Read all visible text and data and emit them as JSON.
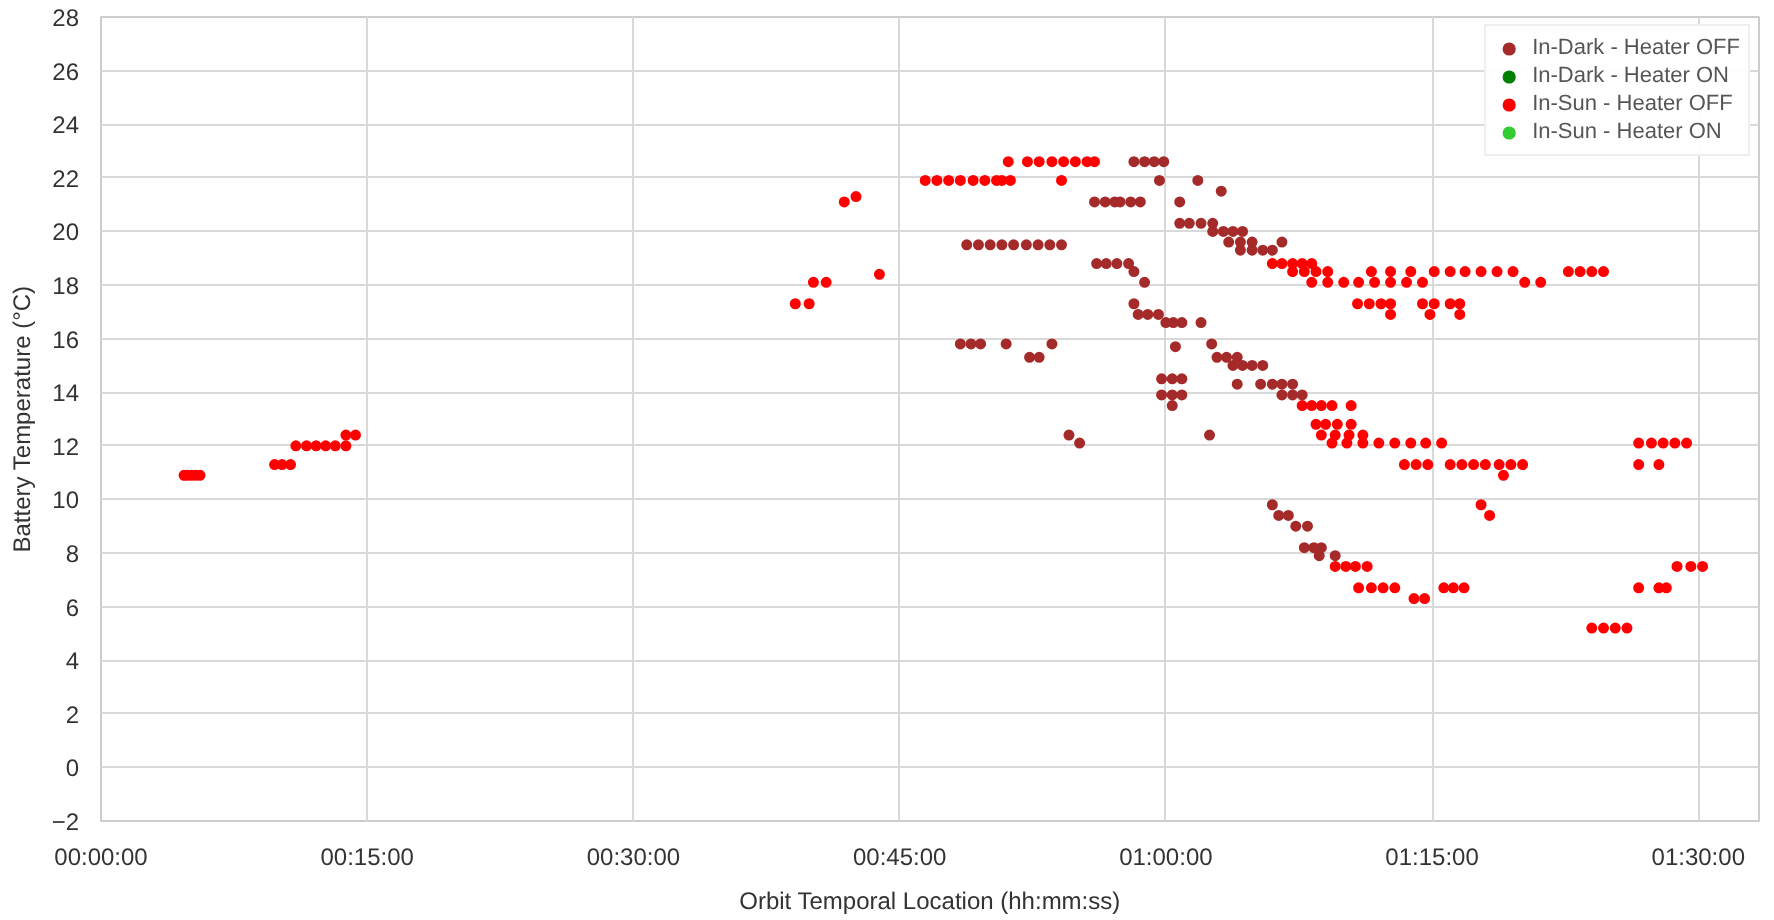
{
  "chart_data": {
    "type": "scatter",
    "xlabel": "Orbit Temporal Location (hh:mm:ss)",
    "ylabel": "Battery Temperature (°C)",
    "xlim": [
      0,
      1.557
    ],
    "ylim": [
      -2,
      28
    ],
    "xticks": [
      {
        "value": 0,
        "label": "00:00:00"
      },
      {
        "value": 0.25,
        "label": "00:15:00"
      },
      {
        "value": 0.5,
        "label": "00:30:00"
      },
      {
        "value": 0.75,
        "label": "00:45:00"
      },
      {
        "value": 1.0,
        "label": "01:00:00"
      },
      {
        "value": 1.25,
        "label": "01:15:00"
      },
      {
        "value": 1.5,
        "label": "01:30:00"
      }
    ],
    "yticks": [
      -2,
      0,
      2,
      4,
      6,
      8,
      10,
      12,
      14,
      16,
      18,
      20,
      22,
      24,
      26,
      28
    ],
    "grid": true,
    "legend": "top right",
    "marker": "circle",
    "series": [
      {
        "name": "In-Dark - Heater OFF",
        "color": "#a52a2a",
        "x": [
          0.813,
          0.824,
          0.835,
          0.846,
          0.857,
          0.869,
          0.88,
          0.891,
          0.902,
          0.807,
          0.817,
          0.826,
          0.85,
          0.872,
          0.881,
          0.893,
          0.909,
          0.919,
          0.935,
          0.944,
          0.954,
          0.965,
          0.97,
          0.98,
          0.933,
          0.943,
          0.952,
          0.957,
          0.967,
          0.976,
          1.013,
          0.97,
          0.98,
          0.989,
          0.998,
          0.994,
          1.03,
          0.97,
          0.974,
          0.983,
          0.993,
          1.0,
          1.007,
          1.015,
          1.009,
          0.996,
          1.006,
          1.015,
          0.996,
          1.006,
          1.015,
          1.006,
          1.033,
          1.013,
          1.022,
          1.033,
          1.044,
          1.052,
          1.044,
          1.054,
          1.063,
          1.072,
          1.059,
          1.07,
          1.081,
          1.07,
          1.081,
          1.091,
          1.1,
          1.109,
          1.048,
          1.057,
          1.067,
          1.043,
          1.063,
          1.072,
          1.081,
          1.091,
          1.067,
          1.089,
          1.1,
          1.109,
          1.119,
          1.109,
          1.119,
          1.128,
          1.041,
          1.1,
          1.106,
          1.115,
          1.122,
          1.133,
          1.13,
          1.139,
          1.146,
          1.144,
          1.159
        ],
        "values": [
          19.5,
          19.5,
          19.5,
          19.5,
          19.5,
          19.5,
          19.5,
          19.5,
          19.5,
          15.8,
          15.8,
          15.8,
          15.8,
          15.3,
          15.3,
          15.8,
          12.4,
          12.1,
          18.8,
          18.8,
          18.8,
          18.8,
          18.5,
          18.1,
          21.1,
          21.1,
          21.1,
          21.1,
          21.1,
          21.1,
          21.1,
          22.6,
          22.6,
          22.6,
          22.6,
          21.9,
          21.9,
          17.3,
          16.9,
          16.9,
          16.9,
          16.6,
          16.6,
          16.6,
          15.7,
          14.5,
          14.5,
          14.5,
          13.9,
          13.9,
          13.9,
          13.5,
          16.6,
          20.3,
          20.3,
          20.3,
          20.3,
          21.5,
          20.0,
          20.0,
          20.0,
          20.0,
          19.6,
          19.6,
          19.6,
          19.3,
          19.3,
          19.3,
          19.3,
          19.6,
          15.3,
          15.3,
          15.3,
          15.8,
          15.0,
          15.0,
          15.0,
          15.0,
          14.3,
          14.3,
          14.3,
          14.3,
          14.3,
          13.9,
          13.9,
          13.9,
          12.4,
          9.8,
          9.4,
          9.4,
          9.0,
          9.0,
          8.2,
          8.2,
          8.2,
          7.9,
          7.9
        ]
      },
      {
        "name": "In-Dark - Heater ON",
        "color": "#007f00"
      },
      {
        "name": "In-Sun - Heater OFF",
        "color": "#ff0000",
        "x": [
          0.078,
          0.081,
          0.085,
          0.089,
          0.093,
          0.163,
          0.17,
          0.178,
          0.183,
          0.193,
          0.202,
          0.211,
          0.22,
          0.23,
          0.23,
          0.239,
          0.652,
          0.665,
          0.669,
          0.681,
          0.698,
          0.709,
          0.731,
          0.774,
          0.785,
          0.796,
          0.807,
          0.819,
          0.83,
          0.841,
          0.846,
          0.854,
          0.902,
          0.852,
          0.87,
          0.881,
          0.893,
          0.904,
          0.915,
          0.926,
          0.933,
          1.159,
          1.169,
          1.178,
          1.189,
          1.181,
          1.193,
          1.204,
          1.215,
          1.233,
          1.243,
          1.261,
          1.27,
          1.28,
          1.1,
          1.109,
          1.119,
          1.128,
          1.137,
          1.119,
          1.13,
          1.141,
          1.152,
          1.137,
          1.152,
          1.167,
          1.181,
          1.196,
          1.211,
          1.226,
          1.241,
          1.193,
          1.211,
          1.23,
          1.252,
          1.267,
          1.281,
          1.296,
          1.311,
          1.326,
          1.337,
          1.352,
          1.378,
          1.389,
          1.4,
          1.411,
          1.18,
          1.191,
          1.202,
          1.211,
          1.241,
          1.252,
          1.267,
          1.276,
          1.211,
          1.248,
          1.276,
          1.128,
          1.137,
          1.146,
          1.156,
          1.174,
          1.141,
          1.15,
          1.161,
          1.174,
          1.146,
          1.159,
          1.172,
          1.185,
          1.156,
          1.17,
          1.185,
          1.2,
          1.215,
          1.23,
          1.244,
          1.259,
          1.224,
          1.235,
          1.246,
          1.267,
          1.278,
          1.289,
          1.3,
          1.313,
          1.324,
          1.335,
          1.317,
          1.296,
          1.304,
          1.4,
          1.411,
          1.422,
          1.433,
          1.444,
          1.456,
          1.467,
          1.478,
          1.489,
          1.444,
          1.463,
          1.444,
          1.463,
          1.47,
          1.48,
          1.493,
          1.504
        ],
        "values": [
          10.9,
          10.9,
          10.9,
          10.9,
          10.9,
          11.3,
          11.3,
          11.3,
          12.0,
          12.0,
          12.0,
          12.0,
          12.0,
          12.0,
          12.4,
          12.4,
          17.3,
          17.3,
          18.1,
          18.1,
          21.1,
          21.3,
          18.4,
          21.9,
          21.9,
          21.9,
          21.9,
          21.9,
          21.9,
          21.9,
          21.9,
          21.9,
          21.9,
          22.6,
          22.6,
          22.6,
          22.6,
          22.6,
          22.6,
          22.6,
          22.6,
          7.5,
          7.5,
          7.5,
          7.5,
          6.7,
          6.7,
          6.7,
          6.7,
          6.3,
          6.3,
          6.7,
          6.7,
          6.7,
          18.8,
          18.8,
          18.8,
          18.8,
          18.8,
          18.5,
          18.5,
          18.5,
          18.5,
          18.1,
          18.1,
          18.1,
          18.1,
          18.1,
          18.1,
          18.1,
          18.1,
          18.5,
          18.5,
          18.5,
          18.5,
          18.5,
          18.5,
          18.5,
          18.5,
          18.5,
          18.1,
          18.1,
          18.5,
          18.5,
          18.5,
          18.5,
          17.3,
          17.3,
          17.3,
          17.3,
          17.3,
          17.3,
          17.3,
          17.3,
          16.9,
          16.9,
          16.9,
          13.5,
          13.5,
          13.5,
          13.5,
          13.5,
          12.8,
          12.8,
          12.8,
          12.8,
          12.4,
          12.4,
          12.4,
          12.4,
          12.1,
          12.1,
          12.1,
          12.1,
          12.1,
          12.1,
          12.1,
          12.1,
          11.3,
          11.3,
          11.3,
          11.3,
          11.3,
          11.3,
          11.3,
          11.3,
          11.3,
          11.3,
          10.9,
          9.8,
          9.4,
          5.2,
          5.2,
          5.2,
          5.2,
          12.1,
          12.1,
          12.1,
          12.1,
          12.1,
          11.3,
          11.3,
          6.7,
          6.7,
          6.7,
          7.5,
          7.5,
          7.5
        ]
      },
      {
        "name": "In-Sun - Heater ON",
        "color": "#32cd32"
      }
    ]
  }
}
